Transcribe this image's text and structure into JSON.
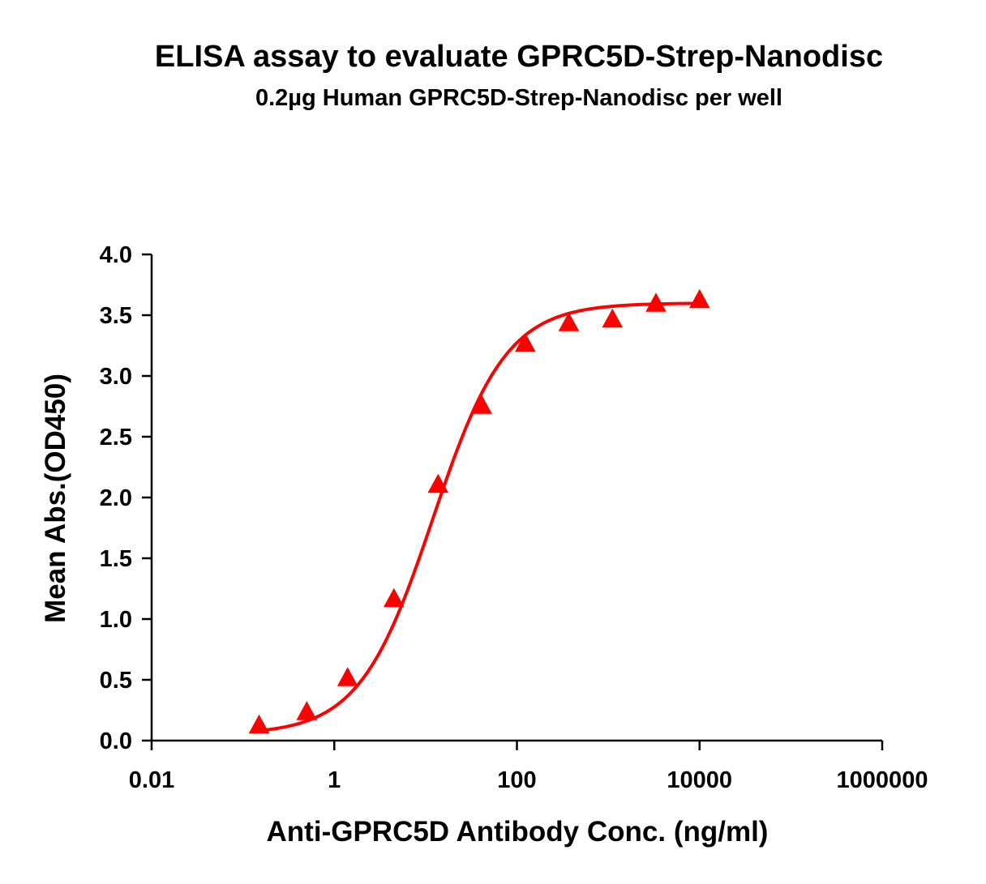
{
  "chart_data": {
    "type": "scatter",
    "title": "ELISA assay to evaluate GPRC5D-Strep-Nanodisc",
    "subtitle": "0.2µg Human GPRC5D-Strep-Nanodisc per well",
    "xlabel": "Anti-GPRC5D Antibody Conc. (ng/ml)",
    "ylabel": "Mean Abs.(OD450)",
    "xscale": "log",
    "xlim": [
      0.01,
      1000000
    ],
    "ylim": [
      0,
      4
    ],
    "x_ticks": [
      0.01,
      1,
      100,
      10000,
      1000000
    ],
    "x_tick_labels": [
      "0.01",
      "1",
      "100",
      "10000",
      "1000000"
    ],
    "y_ticks": [
      0,
      0.5,
      1,
      1.5,
      2,
      2.5,
      3,
      3.5,
      4
    ],
    "y_tick_labels": [
      "0.0",
      "0.5",
      "1.0",
      "1.5",
      "2.0",
      "2.5",
      "3.0",
      "3.5",
      "4.0"
    ],
    "grid": false,
    "marker": "triangle",
    "color": "#ff0000",
    "series": [
      {
        "x": [
          0.15,
          0.5,
          1.4,
          4.5,
          13.7,
          41.2,
          123.5,
          370,
          1111,
          3333,
          10000
        ],
        "y": [
          0.12,
          0.23,
          0.51,
          1.16,
          2.1,
          2.75,
          3.26,
          3.43,
          3.46,
          3.59,
          3.62
        ]
      }
    ],
    "fit_curve": true
  }
}
